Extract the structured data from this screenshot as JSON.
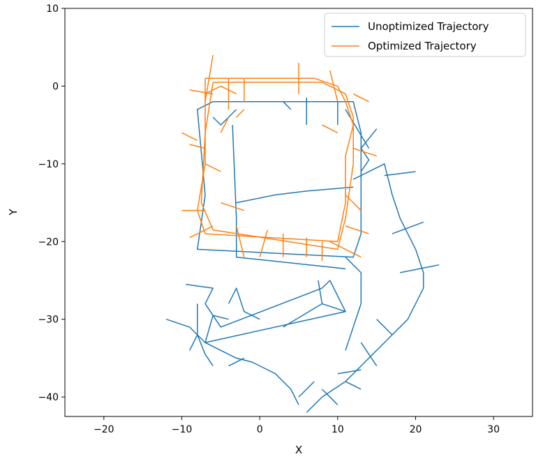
{
  "chart_data": {
    "type": "line",
    "title": "",
    "xlabel": "X",
    "ylabel": "Y",
    "xlim": [
      -25,
      35
    ],
    "ylim": [
      -42.5,
      10
    ],
    "xticks": [
      -20,
      -10,
      0,
      10,
      20,
      30
    ],
    "yticks": [
      10,
      0,
      -10,
      -20,
      -30,
      -40
    ],
    "x_tick_labels": [
      "−20",
      "−10",
      "0",
      "10",
      "20",
      "30"
    ],
    "y_tick_labels": [
      "10",
      "0",
      "−10",
      "−20",
      "−30",
      "−40"
    ],
    "grid": false,
    "legend": {
      "position": "top-right"
    },
    "series": [
      {
        "name": "Unoptimized Trajectory",
        "color": "#1f77b4",
        "segments": [
          [
            [
              -6,
              -2
            ],
            [
              12,
              -2
            ],
            [
              13,
              -6
            ],
            [
              13,
              -19
            ],
            [
              12,
              -22
            ],
            [
              -8,
              -21
            ],
            [
              -7,
              -14
            ],
            [
              -8,
              -3
            ],
            [
              -6,
              -2
            ]
          ],
          [
            [
              -3.5,
              -5
            ],
            [
              -3,
              -17
            ],
            [
              -3,
              -22
            ],
            [
              11,
              -23.5
            ]
          ],
          [
            [
              -3,
              -15
            ],
            [
              2,
              -14
            ],
            [
              6,
              -13.5
            ],
            [
              12,
              -13
            ]
          ],
          [
            [
              -6,
              -4
            ],
            [
              -5,
              -5
            ],
            [
              -4,
              -4
            ],
            [
              -3,
              -3
            ]
          ],
          [
            [
              3,
              -2
            ],
            [
              4,
              -3
            ]
          ],
          [
            [
              6,
              -1.5
            ],
            [
              6,
              -5
            ]
          ],
          [
            [
              10,
              -2
            ],
            [
              10,
              -5
            ]
          ],
          [
            [
              11,
              -3
            ],
            [
              14,
              -8
            ]
          ],
          [
            [
              15,
              -5.5
            ],
            [
              13,
              -8
            ],
            [
              14,
              -9.5
            ],
            [
              13,
              -11
            ]
          ],
          [
            [
              12,
              -12
            ],
            [
              16,
              -10
            ],
            [
              17,
              -14
            ],
            [
              18,
              -17
            ],
            [
              19,
              -19
            ],
            [
              20,
              -21
            ],
            [
              21,
              -24
            ],
            [
              21,
              -26
            ],
            [
              19,
              -30
            ],
            [
              16,
              -33
            ],
            [
              13,
              -36
            ],
            [
              11,
              -38
            ],
            [
              8,
              -40
            ],
            [
              6,
              -42
            ]
          ],
          [
            [
              -9.5,
              -25.5
            ],
            [
              -6,
              -26
            ],
            [
              -7,
              -28
            ],
            [
              -5,
              -31
            ],
            [
              8,
              -26
            ],
            [
              9,
              -25
            ],
            [
              11,
              -29
            ],
            [
              -7,
              -33
            ],
            [
              -6,
              -29.5
            ],
            [
              -4,
              -30
            ]
          ],
          [
            [
              -8,
              -28
            ],
            [
              -8,
              -32
            ],
            [
              -7,
              -34.5
            ],
            [
              -6,
              -36
            ]
          ],
          [
            [
              -12,
              -30
            ],
            [
              -9,
              -31
            ],
            [
              -7,
              -33
            ],
            [
              -5,
              -34
            ],
            [
              -3,
              -35
            ],
            [
              -1,
              -35.5
            ],
            [
              2,
              -37
            ],
            [
              4,
              -39
            ],
            [
              5,
              -41
            ]
          ],
          [
            [
              -4,
              -28
            ],
            [
              -3,
              -26
            ],
            [
              -2,
              -29
            ],
            [
              0,
              -30
            ]
          ],
          [
            [
              3,
              -31
            ],
            [
              8,
              -28
            ],
            [
              11,
              -29
            ]
          ],
          [
            [
              7.5,
              -25
            ],
            [
              8,
              -28
            ]
          ],
          [
            [
              11,
              -22
            ],
            [
              13,
              -24
            ],
            [
              13,
              -28
            ],
            [
              11,
              -34
            ]
          ],
          [
            [
              16,
              -11.5
            ],
            [
              20,
              -11
            ]
          ],
          [
            [
              17,
              -19
            ],
            [
              21,
              -17.5
            ]
          ],
          [
            [
              18,
              -24
            ],
            [
              23,
              -23
            ]
          ],
          [
            [
              15,
              -30
            ],
            [
              17,
              -32
            ]
          ],
          [
            [
              13,
              -33
            ],
            [
              15,
              -36
            ]
          ],
          [
            [
              10,
              -37
            ],
            [
              13,
              -36.5
            ]
          ],
          [
            [
              11,
              -38
            ],
            [
              13,
              -39
            ]
          ],
          [
            [
              8,
              -39
            ],
            [
              10,
              -41
            ]
          ],
          [
            [
              5,
              -40
            ],
            [
              7,
              -38
            ]
          ],
          [
            [
              -4,
              -36
            ],
            [
              -2,
              -35
            ]
          ],
          [
            [
              -9,
              -34
            ],
            [
              -8,
              -32
            ]
          ]
        ]
      },
      {
        "name": "Optimized Trajectory",
        "color": "#ff7f0e",
        "segments": [
          [
            [
              -7,
              1
            ],
            [
              7,
              1
            ],
            [
              10,
              0
            ],
            [
              11,
              -2
            ],
            [
              12,
              -5
            ],
            [
              11,
              -9
            ],
            [
              11,
              -15
            ],
            [
              10,
              -20
            ],
            [
              -7,
              -19
            ],
            [
              -8,
              -16
            ],
            [
              -7,
              -10
            ],
            [
              -7,
              -3
            ],
            [
              -7,
              1
            ]
          ],
          [
            [
              -6,
              0.5
            ],
            [
              8,
              0.5
            ],
            [
              11,
              -1
            ],
            [
              12,
              -4
            ],
            [
              12,
              -10
            ],
            [
              11,
              -17
            ],
            [
              10,
              -21
            ],
            [
              -6,
              -18.5
            ],
            [
              -7.5,
              -15
            ],
            [
              -7,
              -6
            ],
            [
              -6,
              0.5
            ]
          ],
          [
            [
              -7,
              -1
            ],
            [
              -5,
              0
            ],
            [
              -3,
              -1
            ]
          ],
          [
            [
              -6,
              4
            ],
            [
              -7,
              -2
            ]
          ],
          [
            [
              -4,
              1
            ],
            [
              -4,
              -3
            ]
          ],
          [
            [
              -2,
              1
            ],
            [
              -2,
              -2
            ]
          ],
          [
            [
              5,
              3
            ],
            [
              5,
              -1
            ]
          ],
          [
            [
              9,
              2
            ],
            [
              10,
              -2
            ]
          ],
          [
            [
              -9,
              -0.5
            ],
            [
              -6,
              -1
            ]
          ],
          [
            [
              -10,
              -6
            ],
            [
              -8,
              -7
            ]
          ],
          [
            [
              -9,
              -7.5
            ],
            [
              -7,
              -8
            ]
          ],
          [
            [
              -10,
              -16
            ],
            [
              -7,
              -16
            ]
          ],
          [
            [
              -9,
              -19.5
            ],
            [
              -6,
              -18
            ]
          ],
          [
            [
              -5,
              -15
            ],
            [
              -2,
              -16
            ]
          ],
          [
            [
              -5,
              -6
            ],
            [
              -4,
              -4
            ]
          ],
          [
            [
              -3,
              -4
            ],
            [
              -2,
              -3
            ]
          ],
          [
            [
              -3,
              -18
            ],
            [
              -2,
              -22
            ]
          ],
          [
            [
              1,
              -18.5
            ],
            [
              0,
              -22
            ]
          ],
          [
            [
              3,
              -19
            ],
            [
              3,
              -22
            ]
          ],
          [
            [
              6,
              -19.5
            ],
            [
              6,
              -22
            ]
          ],
          [
            [
              8,
              -20
            ],
            [
              8,
              -22.5
            ]
          ],
          [
            [
              9,
              -20
            ],
            [
              13,
              -22
            ]
          ],
          [
            [
              11,
              -18
            ],
            [
              14,
              -19
            ]
          ],
          [
            [
              11,
              -14
            ],
            [
              13,
              -16
            ]
          ],
          [
            [
              12,
              -8
            ],
            [
              15,
              -9
            ]
          ],
          [
            [
              12,
              -1
            ],
            [
              14,
              -2
            ]
          ],
          [
            [
              8,
              -5
            ],
            [
              10,
              -6
            ]
          ],
          [
            [
              -7,
              -10
            ],
            [
              -5,
              -11
            ]
          ]
        ]
      }
    ]
  }
}
